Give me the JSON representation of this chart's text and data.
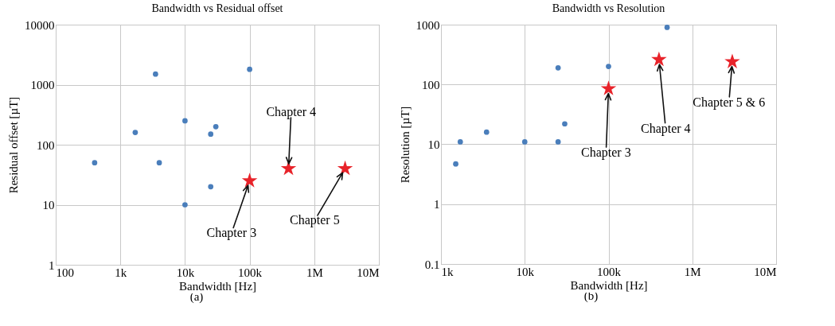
{
  "chart_data": [
    {
      "type": "scatter",
      "title": "Bandwidth vs Residual offset",
      "xlabel": "Bandwidth [Hz]",
      "ylabel": "Residual offset [µT]",
      "log": "xy",
      "grid": true,
      "xlim": [
        100,
        10000000
      ],
      "xticks": [
        100,
        {
          "value": 1000,
          "label": "1k"
        },
        {
          "value": 10000,
          "label": "10k"
        },
        {
          "value": 100000,
          "label": "100k"
        },
        {
          "value": 1000000,
          "label": "1M"
        },
        {
          "value": 10000000,
          "label": "10M"
        }
      ],
      "ylim": [
        1,
        10000
      ],
      "yticks": [
        1,
        10,
        100,
        1000,
        10000
      ],
      "series": [
        {
          "color": "#4a7ebb",
          "marker": "circle",
          "x": [
            400,
            1700,
            3500,
            4000,
            10000,
            10000,
            25000,
            30000,
            25000,
            100000
          ],
          "values": [
            50,
            160,
            1500,
            50,
            250,
            10,
            150,
            200,
            20,
            1800
          ]
        },
        {
          "color": "#e8232a",
          "marker": "star",
          "x": [
            100000,
            400000,
            3000000
          ],
          "values": [
            25,
            40,
            40
          ]
        }
      ],
      "annotations": [
        {
          "text": "Chapter 3",
          "x": 100000,
          "y": 25
        },
        {
          "text": "Chapter 4",
          "x": 400000,
          "y": 40
        },
        {
          "text": "Chapter 5",
          "x": 3000000,
          "y": 40
        },
        "(a)"
      ]
    },
    {
      "type": "scatter",
      "title": "Bandwidth vs Resolution",
      "xlabel": "Bandwidth [Hz]",
      "ylabel": "Resolution [µT]",
      "log": "xy",
      "grid": true,
      "xlim": [
        1000,
        10000000
      ],
      "xticks": [
        {
          "value": 1000,
          "label": "1k"
        },
        {
          "value": 10000,
          "label": "10k"
        },
        {
          "value": 100000,
          "label": "100k"
        },
        {
          "value": 1000000,
          "label": "1M"
        },
        {
          "value": 10000000,
          "label": "10M"
        }
      ],
      "ylim": [
        0.1,
        1000
      ],
      "yticks": [
        0.1,
        1,
        10,
        100,
        1000
      ],
      "series": [
        {
          "color": "#4a7ebb",
          "marker": "circle",
          "x": [
            1500,
            1700,
            3500,
            10000,
            25000,
            25000,
            30000,
            100000,
            500000
          ],
          "values": [
            4.7,
            11,
            16,
            11,
            190,
            11,
            22,
            200,
            900
          ]
        },
        {
          "color": "#e8232a",
          "marker": "star",
          "x": [
            100000,
            400000,
            3000000
          ],
          "values": [
            85,
            260,
            240
          ]
        }
      ],
      "annotations": [
        {
          "text": "Chapter 3",
          "x": 100000,
          "y": 85
        },
        {
          "text": "Chapter 4",
          "x": 400000,
          "y": 260
        },
        {
          "text": "Chapter 5 & 6",
          "x": 3000000,
          "y": 240
        },
        "(b)"
      ]
    }
  ]
}
